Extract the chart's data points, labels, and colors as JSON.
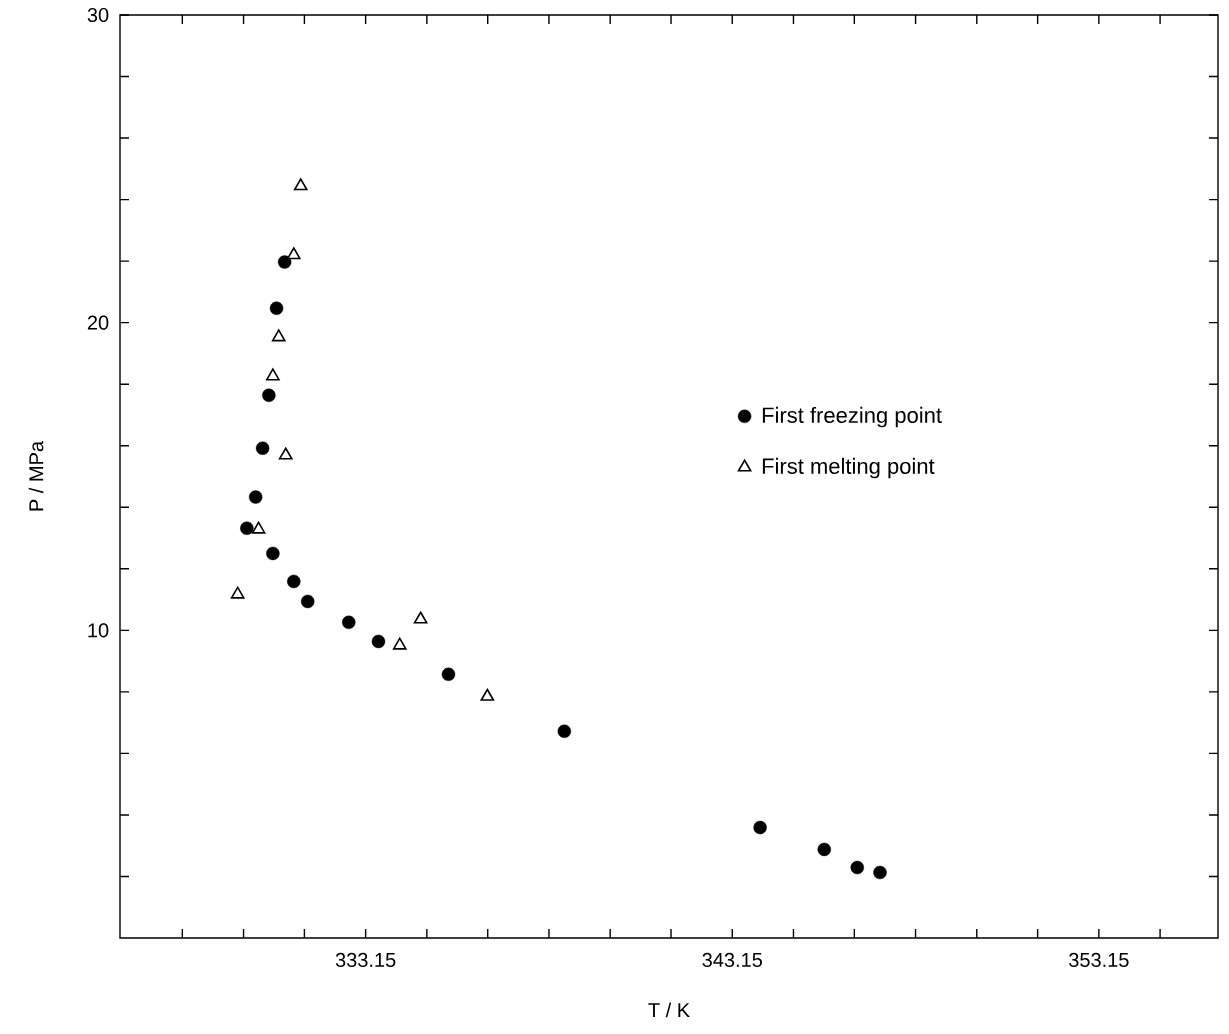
{
  "chart_data": {
    "type": "scatter",
    "xlabel": "T / K",
    "ylabel": "P / MPa",
    "xlim": [
      326.45,
      356.4
    ],
    "ylim": [
      0,
      30
    ],
    "xticks": [
      {
        "value": 328.15,
        "label": null
      },
      {
        "value": 329.82,
        "label": null
      },
      {
        "value": 331.48,
        "label": null
      },
      333.15,
      {
        "value": 334.82,
        "label": null
      },
      {
        "value": 336.48,
        "label": null
      },
      {
        "value": 338.15,
        "label": null
      },
      {
        "value": 339.82,
        "label": null
      },
      {
        "value": 341.48,
        "label": null
      },
      343.15,
      {
        "value": 344.82,
        "label": null
      },
      {
        "value": 346.48,
        "label": null
      },
      {
        "value": 348.15,
        "label": null
      },
      {
        "value": 349.82,
        "label": null
      },
      {
        "value": 351.48,
        "label": null
      },
      353.15,
      {
        "value": 354.82,
        "label": null
      }
    ],
    "yticks": [
      {
        "value": 2,
        "label": null
      },
      {
        "value": 4,
        "label": null
      },
      {
        "value": 6,
        "label": null
      },
      {
        "value": 8,
        "label": null
      },
      10,
      {
        "value": 12,
        "label": null
      },
      {
        "value": 14,
        "label": null
      },
      {
        "value": 16,
        "label": null
      },
      {
        "value": 18,
        "label": null
      },
      20,
      {
        "value": 22,
        "label": null
      },
      {
        "value": 24,
        "label": null
      },
      {
        "value": 26,
        "label": null
      },
      {
        "value": 28,
        "label": null
      },
      30
    ],
    "legend": "right",
    "grid": false,
    "series": [
      {
        "name": "First freezing point",
        "color": "#000000",
        "marker": "circle",
        "x": [
          330.94,
          330.72,
          330.51,
          330.34,
          330.15,
          329.91,
          330.62,
          331.19,
          331.57,
          332.69,
          333.5,
          335.41,
          338.57,
          343.91,
          345.66,
          346.56,
          347.18
        ],
        "values": [
          21.97,
          20.47,
          17.64,
          15.92,
          14.33,
          13.32,
          12.5,
          11.59,
          10.94,
          10.26,
          9.64,
          8.57,
          6.72,
          3.59,
          2.88,
          2.29,
          2.13
        ]
      },
      {
        "name": "First melting point",
        "color": "#000000",
        "marker": "triangle",
        "x": [
          331.38,
          331.19,
          330.78,
          330.62,
          330.97,
          330.23,
          329.66,
          334.65,
          334.08,
          336.47
        ],
        "values": [
          24.44,
          22.2,
          19.53,
          18.26,
          15.69,
          13.28,
          11.17,
          10.36,
          9.51,
          7.85
        ]
      }
    ]
  }
}
